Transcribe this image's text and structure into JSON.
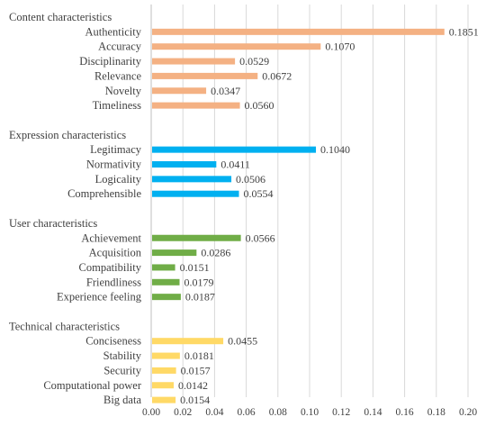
{
  "chart_data": {
    "type": "bar",
    "orientation": "horizontal",
    "title": "",
    "xlabel": "",
    "ylabel": "",
    "xlim": [
      0,
      0.2
    ],
    "xticks": [
      "0.00",
      "0.02",
      "0.04",
      "0.06",
      "0.08",
      "0.10",
      "0.12",
      "0.14",
      "0.16",
      "0.18",
      "0.20"
    ],
    "grid": true,
    "groups": [
      {
        "name": "Content characteristics",
        "color": "#f4b183",
        "items": [
          {
            "label": "Authenticity",
            "value": 0.1851,
            "value_label": "0.1851"
          },
          {
            "label": "Accuracy",
            "value": 0.107,
            "value_label": "0.1070"
          },
          {
            "label": "Disciplinarity",
            "value": 0.0529,
            "value_label": "0.0529"
          },
          {
            "label": "Relevance",
            "value": 0.0672,
            "value_label": "0.0672"
          },
          {
            "label": "Novelty",
            "value": 0.0347,
            "value_label": "0.0347"
          },
          {
            "label": "Timeliness",
            "value": 0.056,
            "value_label": "0.0560"
          }
        ]
      },
      {
        "name": "Expression characteristics",
        "color": "#00b0f0",
        "items": [
          {
            "label": "Legitimacy",
            "value": 0.104,
            "value_label": "0.1040"
          },
          {
            "label": "Normativity",
            "value": 0.0411,
            "value_label": "0.0411"
          },
          {
            "label": "Logicality",
            "value": 0.0506,
            "value_label": "0.0506"
          },
          {
            "label": "Comprehensible",
            "value": 0.0554,
            "value_label": "0.0554"
          }
        ]
      },
      {
        "name": "User characteristics",
        "color": "#70ad47",
        "items": [
          {
            "label": "Achievement",
            "value": 0.0566,
            "value_label": "0.0566"
          },
          {
            "label": "Acquisition",
            "value": 0.0286,
            "value_label": "0.0286"
          },
          {
            "label": "Compatibility",
            "value": 0.0151,
            "value_label": "0.0151"
          },
          {
            "label": "Friendliness",
            "value": 0.0179,
            "value_label": "0.0179"
          },
          {
            "label": "Experience feeling",
            "value": 0.0187,
            "value_label": "0.0187"
          }
        ]
      },
      {
        "name": "Technical characteristics",
        "color": "#ffd966",
        "items": [
          {
            "label": "Conciseness",
            "value": 0.0455,
            "value_label": "0.0455"
          },
          {
            "label": "Stability",
            "value": 0.0181,
            "value_label": "0.0181"
          },
          {
            "label": "Security",
            "value": 0.0157,
            "value_label": "0.0157"
          },
          {
            "label": "Computational power",
            "value": 0.0142,
            "value_label": "0.0142"
          },
          {
            "label": "Big data",
            "value": 0.0154,
            "value_label": "0.0154"
          }
        ]
      }
    ]
  }
}
